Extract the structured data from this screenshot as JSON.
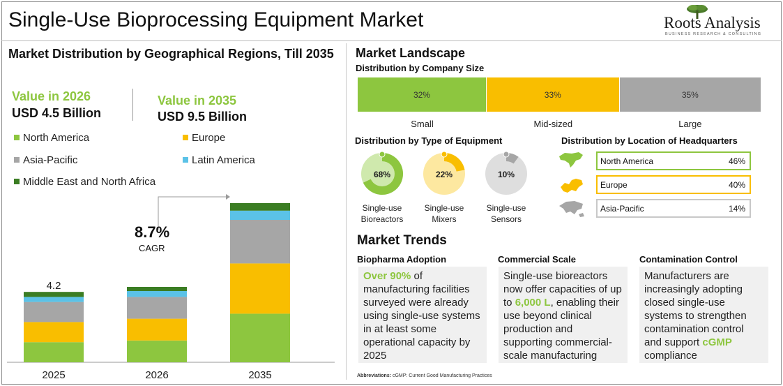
{
  "title": "Single-Use Bioprocessing Equipment Market",
  "logo": {
    "name": "Roots Analysis",
    "tagline": "BUSINESS RESEARCH & CONSULTING"
  },
  "left_panel": {
    "heading": "Market Distribution by Geographical Regions, Till 2035",
    "value_2026_label": "Value in 2026",
    "value_2026": "USD 4.5 Billion",
    "value_2035_label": "Value in 2035",
    "value_2035": "USD 9.5 Billion",
    "legend": [
      {
        "label": "North America",
        "color": "#8dc63f"
      },
      {
        "label": "Europe",
        "color": "#f9be00"
      },
      {
        "label": "Asia-Pacific",
        "color": "#a6a6a6"
      },
      {
        "label": "Latin America",
        "color": "#5bc2e7"
      },
      {
        "label": "Middle East and North Africa",
        "color": "#3b7d23"
      }
    ],
    "cagr_value": "8.7%",
    "cagr_label": "CAGR"
  },
  "chart_data": {
    "type": "bar",
    "stacked": true,
    "categories": [
      "2025",
      "2026",
      "2035"
    ],
    "series": [
      {
        "name": "North America",
        "color": "#8dc63f",
        "values": [
          1.2,
          1.3,
          2.9
        ]
      },
      {
        "name": "Europe",
        "color": "#f9be00",
        "values": [
          1.2,
          1.3,
          3.0
        ]
      },
      {
        "name": "Asia-Pacific",
        "color": "#a6a6a6",
        "values": [
          1.2,
          1.3,
          2.6
        ]
      },
      {
        "name": "Latin America",
        "color": "#5bc2e7",
        "values": [
          0.3,
          0.35,
          0.55
        ]
      },
      {
        "name": "Middle East and North Africa",
        "color": "#3b7d23",
        "values": [
          0.3,
          0.25,
          0.45
        ]
      }
    ],
    "data_labels": {
      "2025": "4.2"
    },
    "grid": false,
    "legend": "top-left"
  },
  "landscape": {
    "heading": "Market Landscape",
    "company_size": {
      "heading": "Distribution by Company Size",
      "segments": [
        {
          "label": "Small",
          "value": "32%",
          "share": 32,
          "color": "#8dc63f"
        },
        {
          "label": "Mid-sized",
          "value": "33%",
          "share": 33,
          "color": "#f9be00"
        },
        {
          "label": "Large",
          "value": "35%",
          "share": 35,
          "color": "#a6a6a6"
        }
      ]
    },
    "equipment": {
      "heading": "Distribution by Type of Equipment",
      "items": [
        {
          "label": "Single-use Bioreactors",
          "value": "68%",
          "share": 68,
          "color": "#8dc63f",
          "light": "#cfe9ad"
        },
        {
          "label": "Single-use Mixers",
          "value": "22%",
          "share": 22,
          "color": "#f9be00",
          "light": "#fde8a0"
        },
        {
          "label": "Single-use Sensors",
          "value": "10%",
          "share": 10,
          "color": "#a6a6a6",
          "light": "#dedede"
        }
      ]
    },
    "headquarters": {
      "heading": "Distribution by Location of Headquarters",
      "items": [
        {
          "label": "North America",
          "value": "46%",
          "color": "#8dc63f"
        },
        {
          "label": "Europe",
          "value": "40%",
          "color": "#f9be00"
        },
        {
          "label": "Asia-Pacific",
          "value": "14%",
          "color": "#a6a6a6"
        }
      ]
    }
  },
  "trends": {
    "heading": "Market Trends",
    "items": [
      {
        "title": "Biopharma Adoption",
        "highlight": "Over 90%",
        "text": " of manufacturing facilities surveyed were already using single-use systems in at least some operational capacity by 2025"
      },
      {
        "title": "Commercial Scale",
        "pre": "Single-use bioreactors now offer capacities of up to ",
        "highlight": "6,000 L",
        "text": ", enabling their use beyond clinical production and supporting commercial-scale manufacturing"
      },
      {
        "title": "Contamination Control",
        "pre": "Manufacturers are increasingly adopting closed single-use systems to strengthen contamination control and support ",
        "highlight": "cGMP",
        "text": " compliance"
      }
    ]
  },
  "abbreviations": {
    "label": "Abbreviations:",
    "text": " cGMP: Current Good Manufacturing Practices"
  }
}
